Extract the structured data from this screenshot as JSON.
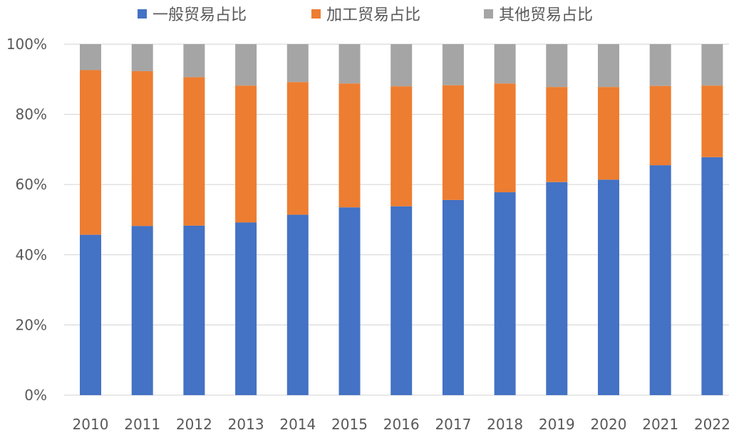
{
  "chart_data": {
    "type": "bar",
    "stacked": true,
    "percent": true,
    "categories": [
      "2010",
      "2011",
      "2012",
      "2013",
      "2014",
      "2015",
      "2016",
      "2017",
      "2018",
      "2019",
      "2020",
      "2021",
      "2022"
    ],
    "series": [
      {
        "name": "一般贸易占比",
        "color": "#4472C4",
        "values": [
          45.7,
          48.2,
          48.3,
          49.2,
          51.4,
          53.5,
          53.8,
          55.6,
          57.8,
          60.7,
          61.4,
          65.5,
          67.8
        ]
      },
      {
        "name": "加工贸易占比",
        "color": "#ED7D31",
        "values": [
          46.9,
          44.1,
          42.3,
          39.0,
          37.8,
          35.3,
          34.2,
          32.7,
          31.0,
          27.1,
          26.4,
          22.6,
          20.4
        ]
      },
      {
        "name": "其他贸易占比",
        "color": "#A5A5A5",
        "values": [
          7.4,
          7.7,
          9.4,
          11.8,
          10.8,
          11.2,
          12.0,
          11.7,
          11.2,
          12.2,
          12.2,
          11.9,
          11.8
        ]
      }
    ],
    "ylim": [
      0,
      100
    ],
    "yticks": [
      "0%",
      "20%",
      "40%",
      "60%",
      "80%",
      "100%"
    ],
    "ytick_values": [
      0,
      20,
      40,
      60,
      80,
      100
    ],
    "grid": true,
    "legend": "top",
    "title": "",
    "xlabel": "",
    "ylabel": ""
  }
}
